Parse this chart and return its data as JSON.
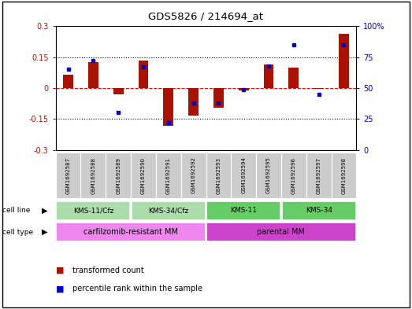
{
  "title": "GDS5826 / 214694_at",
  "samples": [
    "GSM1692587",
    "GSM1692588",
    "GSM1692589",
    "GSM1692590",
    "GSM1692591",
    "GSM1692592",
    "GSM1692593",
    "GSM1692594",
    "GSM1692595",
    "GSM1692596",
    "GSM1692597",
    "GSM1692598"
  ],
  "transformed_count": [
    0.065,
    0.125,
    -0.03,
    0.135,
    -0.185,
    -0.135,
    -0.095,
    -0.01,
    0.115,
    0.1,
    -0.005,
    0.265
  ],
  "percentile_rank": [
    65,
    72,
    30,
    67,
    22,
    38,
    38,
    49,
    68,
    85,
    45,
    85
  ],
  "cell_line_groups": [
    {
      "label": "KMS-11/Cfz",
      "start": 0,
      "end": 2,
      "color": "#aaddaa"
    },
    {
      "label": "KMS-34/Cfz",
      "start": 3,
      "end": 5,
      "color": "#aaddaa"
    },
    {
      "label": "KMS-11",
      "start": 6,
      "end": 8,
      "color": "#66cc66"
    },
    {
      "label": "KMS-34",
      "start": 9,
      "end": 11,
      "color": "#66cc66"
    }
  ],
  "cell_type_groups": [
    {
      "label": "carfilzomib-resistant MM",
      "start": 0,
      "end": 5,
      "color": "#ee88ee"
    },
    {
      "label": "parental MM",
      "start": 6,
      "end": 11,
      "color": "#cc44cc"
    }
  ],
  "ylim_left": [
    -0.3,
    0.3
  ],
  "ylim_right": [
    0,
    100
  ],
  "yticks_left": [
    -0.3,
    -0.15,
    0.0,
    0.15,
    0.3
  ],
  "yticks_right": [
    0,
    25,
    50,
    75,
    100
  ],
  "hlines_dotted": [
    -0.15,
    0.15
  ],
  "hline_dashed": 0.0,
  "bar_color": "#AA1100",
  "dot_color": "#0000CC",
  "bar_width": 0.4
}
